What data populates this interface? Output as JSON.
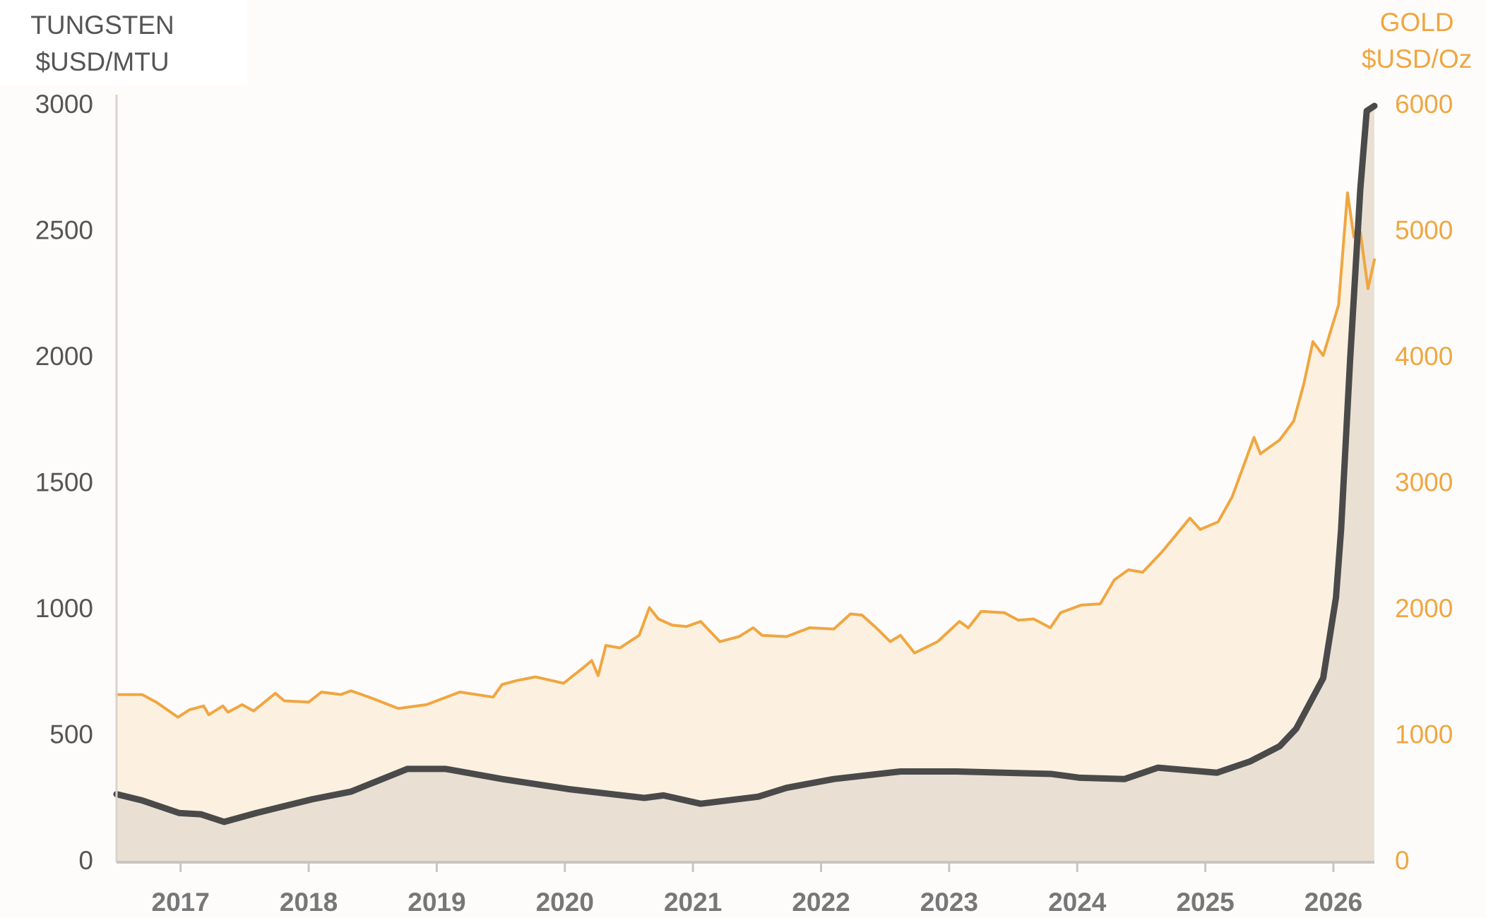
{
  "chart_data": {
    "type": "line",
    "y_label": [
      "TUNGSTEN",
      "$USD/MTU"
    ],
    "y2_label": [
      "GOLD",
      "$USD/Oz"
    ],
    "xlim": [
      2016.5,
      2026.32
    ],
    "xticks": [
      2017,
      2018,
      2019,
      2020,
      2021,
      2022,
      2023,
      2024,
      2025,
      2026
    ],
    "ylim": [
      0,
      3000
    ],
    "yticks": [
      0,
      500,
      1000,
      1500,
      2000,
      2500,
      3000
    ],
    "y2lim": [
      0,
      6000
    ],
    "y2ticks": [
      0,
      1000,
      2000,
      3000,
      4000,
      5000,
      6000
    ],
    "grid": false,
    "series": [
      {
        "name": "TUNGSTEN",
        "color": "#4a4a4a",
        "fill": "#e9e0d3",
        "axis": "y",
        "x": [
          2016.5,
          2016.7,
          2016.99,
          2017.16,
          2017.34,
          2017.59,
          2018.03,
          2018.33,
          2018.77,
          2019.07,
          2019.51,
          2020.03,
          2020.62,
          2020.77,
          2021.06,
          2021.51,
          2021.73,
          2022.1,
          2022.62,
          2023.06,
          2023.8,
          2024.02,
          2024.37,
          2024.63,
          2025.09,
          2025.35,
          2025.58,
          2025.71,
          2025.92,
          2026.02,
          2026.06,
          2026.13,
          2026.21,
          2026.26,
          2026.32
        ],
        "values": [
          270,
          245,
          195,
          190,
          160,
          195,
          250,
          280,
          370,
          370,
          330,
          290,
          255,
          265,
          232,
          260,
          295,
          330,
          360,
          360,
          350,
          335,
          330,
          375,
          355,
          400,
          460,
          530,
          730,
          1050,
          1320,
          1990,
          2670,
          2980,
          3000
        ]
      },
      {
        "name": "GOLD",
        "color": "#f0a640",
        "fill": "#fcf1e1",
        "axis": "y2",
        "x": [
          2016.5,
          2016.7,
          2016.81,
          2016.98,
          2017.07,
          2017.18,
          2017.22,
          2017.33,
          2017.37,
          2017.48,
          2017.57,
          2017.74,
          2017.81,
          2018.0,
          2018.1,
          2018.25,
          2018.33,
          2018.47,
          2018.7,
          2018.92,
          2019.18,
          2019.44,
          2019.51,
          2019.62,
          2019.77,
          2019.99,
          2020.14,
          2020.21,
          2020.26,
          2020.32,
          2020.43,
          2020.58,
          2020.66,
          2020.73,
          2020.84,
          2020.95,
          2021.06,
          2021.21,
          2021.36,
          2021.47,
          2021.54,
          2021.73,
          2021.91,
          2022.1,
          2022.23,
          2022.32,
          2022.43,
          2022.54,
          2022.62,
          2022.73,
          2022.91,
          2023.08,
          2023.15,
          2023.25,
          2023.43,
          2023.54,
          2023.66,
          2023.79,
          2023.87,
          2024.03,
          2024.18,
          2024.29,
          2024.4,
          2024.51,
          2024.66,
          2024.88,
          2024.96,
          2025.1,
          2025.21,
          2025.38,
          2025.43,
          2025.58,
          2025.69,
          2025.77,
          2025.84,
          2025.92,
          2026.04,
          2026.11,
          2026.16,
          2026.21,
          2026.27,
          2026.32
        ],
        "values": [
          1330,
          1330,
          1270,
          1150,
          1210,
          1240,
          1170,
          1240,
          1190,
          1250,
          1200,
          1340,
          1280,
          1270,
          1350,
          1330,
          1360,
          1310,
          1220,
          1250,
          1350,
          1310,
          1410,
          1440,
          1470,
          1420,
          1540,
          1600,
          1480,
          1720,
          1700,
          1800,
          2020,
          1930,
          1880,
          1870,
          1910,
          1750,
          1790,
          1860,
          1800,
          1790,
          1860,
          1850,
          1970,
          1960,
          1860,
          1750,
          1800,
          1660,
          1750,
          1910,
          1860,
          1990,
          1980,
          1920,
          1930,
          1860,
          1980,
          2040,
          2050,
          2240,
          2320,
          2300,
          2460,
          2730,
          2640,
          2700,
          2900,
          3370,
          3240,
          3350,
          3500,
          3800,
          4130,
          4020,
          4420,
          5310,
          4960,
          5000,
          4550,
          4780
        ]
      }
    ]
  }
}
